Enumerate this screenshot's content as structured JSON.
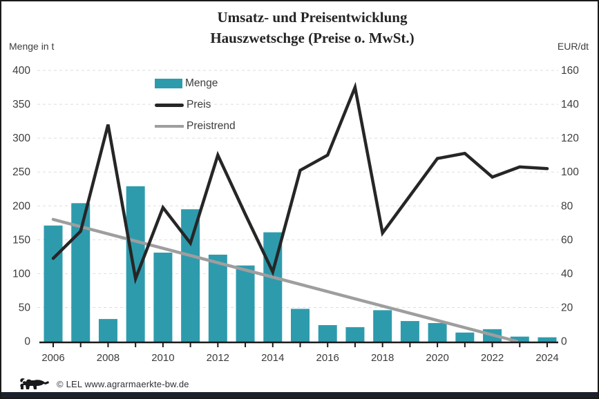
{
  "title": {
    "line1": "Umsatz- und Preisentwicklung",
    "line2": "Hauszwetschge (Preise o. MwSt.)"
  },
  "axes": {
    "left_label": "Menge in t",
    "right_label": "EUR/dt",
    "left_ticks": [
      0,
      50,
      100,
      150,
      200,
      250,
      300,
      350,
      400
    ],
    "right_ticks": [
      0,
      20,
      40,
      60,
      80,
      100,
      120,
      140,
      160
    ],
    "left_max": 400,
    "right_max": 160,
    "x_label_years": [
      2006,
      2008,
      2010,
      2012,
      2014,
      2016,
      2018,
      2020,
      2022,
      2024
    ]
  },
  "legend": {
    "items": [
      {
        "label": "Menge",
        "type": "bar",
        "color": "#2E9BAD"
      },
      {
        "label": "Preis",
        "type": "line",
        "color": "#262626"
      },
      {
        "label": "Preistrend",
        "type": "line",
        "color": "#9E9E9E"
      }
    ]
  },
  "footer": {
    "copyright": "© LEL www.agrarmaerkte-bw.de"
  },
  "colors": {
    "bar": "#2E9BAD",
    "price_line": "#262626",
    "trend_line": "#9E9E9E",
    "grid": "#DEDEDE",
    "axis": "#1A1A1A",
    "text": "#3C3C3C",
    "bottom_strip": "#1C222C"
  },
  "chart_data": {
    "type": "bar+line combo, dual axis",
    "title": "Umsatz- und Preisentwicklung Hauszwetschge (Preise o. MwSt.)",
    "x": [
      2006,
      2007,
      2008,
      2009,
      2010,
      2011,
      2012,
      2013,
      2014,
      2015,
      2016,
      2017,
      2018,
      2019,
      2020,
      2021,
      2022,
      2023,
      2024
    ],
    "series": [
      {
        "name": "Menge",
        "type": "bar",
        "axis": "left",
        "unit": "t",
        "values": [
          171,
          204,
          33,
          229,
          131,
          195,
          128,
          112,
          161,
          48,
          24,
          21,
          46,
          30,
          27,
          13,
          18,
          7,
          6
        ]
      },
      {
        "name": "Preis",
        "type": "line",
        "axis": "right",
        "unit": "EUR/dt",
        "values": [
          49,
          65,
          128,
          37,
          79,
          58,
          110,
          75,
          41,
          101,
          110,
          150,
          64,
          86,
          108,
          111,
          97,
          103,
          102
        ]
      },
      {
        "name": "Preistrend",
        "type": "line",
        "axis": "right",
        "unit": "EUR/dt",
        "trend": {
          "start": {
            "x": 2006,
            "y": 72
          },
          "end": {
            "x": 2022.9,
            "y": 0
          }
        }
      }
    ],
    "ylabel_left": "Menge in t",
    "ylabel_right": "EUR/dt",
    "ylim_left": [
      0,
      400
    ],
    "ylim_right": [
      0,
      160
    ],
    "grid": "horizontal dashed",
    "legend_position": "inside top-left"
  }
}
